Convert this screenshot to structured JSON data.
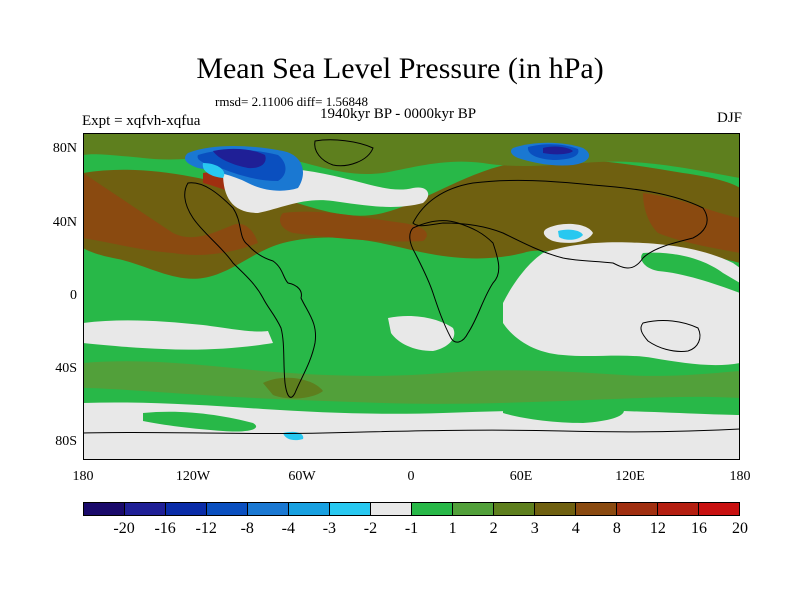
{
  "title": "Mean Sea Level Pressure (in hPa)",
  "stats": "rmsd= 2.11006 diff= 1.56848",
  "period": "1940kyr BP - 0000kyr BP",
  "experiment": "Expt = xqfvh-xqfua",
  "season": "DJF",
  "lat_labels": [
    "80N",
    "40N",
    "0",
    "40S",
    "80S"
  ],
  "lon_labels": [
    "180",
    "120W",
    "60W",
    "0",
    "60E",
    "120E",
    "180"
  ],
  "colorbar": {
    "colors": [
      "#1a0a6b",
      "#1f1f96",
      "#0a2ca8",
      "#0a4fbf",
      "#1a78d2",
      "#18a0e0",
      "#28c8f0",
      "#e8e8e8",
      "#28b848",
      "#52a03a",
      "#5e7f1e",
      "#6f6010",
      "#8a4a10",
      "#a02f10",
      "#b41e10",
      "#c81010"
    ],
    "labels": [
      "-20",
      "-16",
      "-12",
      "-8",
      "-4",
      "-3",
      "-2",
      "-1",
      "1",
      "2",
      "3",
      "4",
      "8",
      "12",
      "16",
      "20"
    ]
  },
  "palette": {
    "green": "#28b848",
    "light_green": "#52a03a",
    "olive": "#5e7f1e",
    "brown": "#6f6010",
    "dark_brown": "#8a4a10",
    "red_brown": "#a02f10",
    "white": "#e8e8e8",
    "cyan": "#28c8f0",
    "light_blue": "#18a0e0",
    "blue": "#1a78d2",
    "dark_blue": "#0a4fbf",
    "navy": "#1f1f96"
  }
}
